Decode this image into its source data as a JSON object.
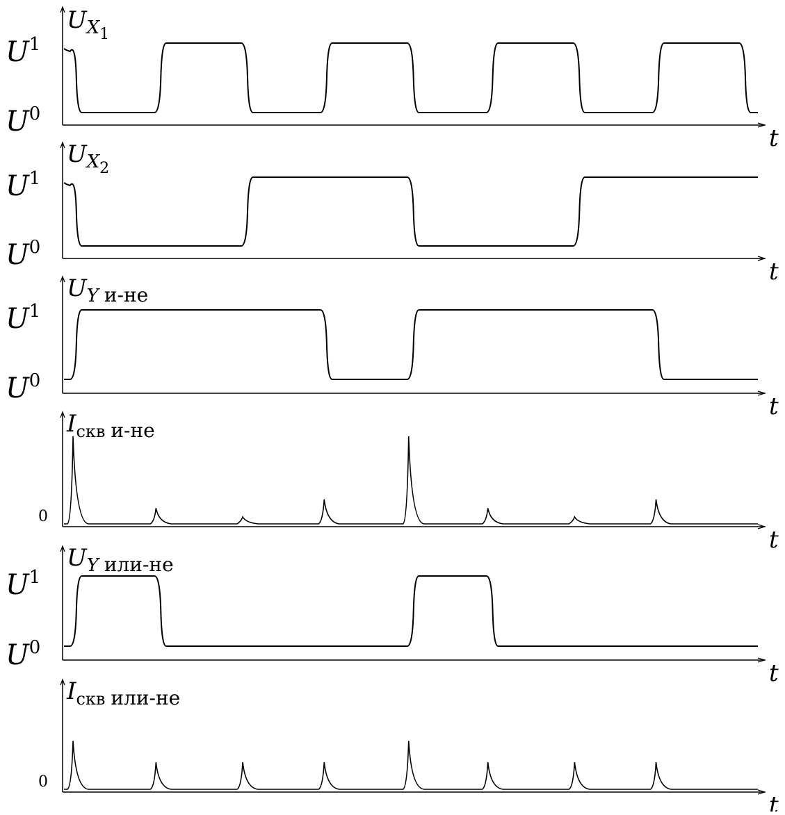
{
  "figure": {
    "x_axis_symbol": "t",
    "panels": [
      {
        "id": "ux1",
        "title_main": "U",
        "title_sub": "X",
        "title_subsub": "1",
        "title_suffix": "",
        "level_high_label": "U",
        "level_high_sup": "1",
        "level_low_label": "U",
        "level_low_sup": "0",
        "zero_label": "",
        "waveform": "square",
        "initial_level": 1,
        "transitions": [
          0.08,
          1.2,
          2.35,
          3.4,
          4.55,
          5.6,
          6.75,
          7.8,
          8.95
        ],
        "note": "period ~2.35 units, repeats"
      },
      {
        "id": "ux2",
        "title_main": "U",
        "title_sub": "X",
        "title_subsub": "2",
        "title_suffix": "",
        "level_high_label": "U",
        "level_high_sup": "1",
        "level_low_label": "U",
        "level_low_sup": "0",
        "zero_label": "",
        "waveform": "square",
        "initial_level": 1,
        "transitions": [
          0.08,
          2.35,
          4.55,
          6.75
        ],
        "note": ""
      },
      {
        "id": "uy-and",
        "title_main": "U",
        "title_sub": "Y",
        "title_subsub": "",
        "title_suffix": "и-не",
        "level_high_label": "U",
        "level_high_sup": "1",
        "level_low_label": "U",
        "level_low_sup": "0",
        "zero_label": "",
        "waveform": "square",
        "initial_level": 0,
        "transitions": [
          0.08,
          3.4,
          4.55,
          7.8
        ],
        "note": ""
      },
      {
        "id": "isk-and",
        "title_main": "I",
        "title_sub": "скв",
        "title_subsub": "",
        "title_suffix": "и-не",
        "level_high_label": "",
        "level_high_sup": "",
        "level_low_label": "",
        "level_low_sup": "",
        "zero_label": "0",
        "waveform": "spikes",
        "spikes": [
          {
            "t": 0.12,
            "h": 1.0
          },
          {
            "t": 1.22,
            "h": 0.18
          },
          {
            "t": 2.37,
            "h": 0.08
          },
          {
            "t": 3.45,
            "h": 0.28
          },
          {
            "t": 4.57,
            "h": 1.0
          },
          {
            "t": 5.62,
            "h": 0.18
          },
          {
            "t": 6.77,
            "h": 0.08
          },
          {
            "t": 7.85,
            "h": 0.28
          }
        ]
      },
      {
        "id": "uy-or",
        "title_main": "U",
        "title_sub": "Y",
        "title_subsub": "",
        "title_suffix": "или-не",
        "level_high_label": "U",
        "level_high_sup": "1",
        "level_low_label": "U",
        "level_low_sup": "0",
        "zero_label": "",
        "waveform": "square",
        "initial_level": 0,
        "transitions": [
          0.08,
          1.2,
          4.55,
          5.6
        ],
        "note": ""
      },
      {
        "id": "isk-or",
        "title_main": "I",
        "title_sub": "скв",
        "title_subsub": "",
        "title_suffix": "или-не",
        "level_high_label": "",
        "level_high_sup": "",
        "level_low_label": "",
        "level_low_sup": "",
        "zero_label": "0",
        "waveform": "spikes",
        "spikes": [
          {
            "t": 0.12,
            "h": 0.75
          },
          {
            "t": 1.22,
            "h": 0.42
          },
          {
            "t": 2.37,
            "h": 0.42
          },
          {
            "t": 3.45,
            "h": 0.42
          },
          {
            "t": 4.57,
            "h": 0.75
          },
          {
            "t": 5.62,
            "h": 0.42
          },
          {
            "t": 6.77,
            "h": 0.42
          },
          {
            "t": 7.85,
            "h": 0.42
          }
        ]
      }
    ],
    "t_range": [
      0,
      9.2
    ]
  }
}
